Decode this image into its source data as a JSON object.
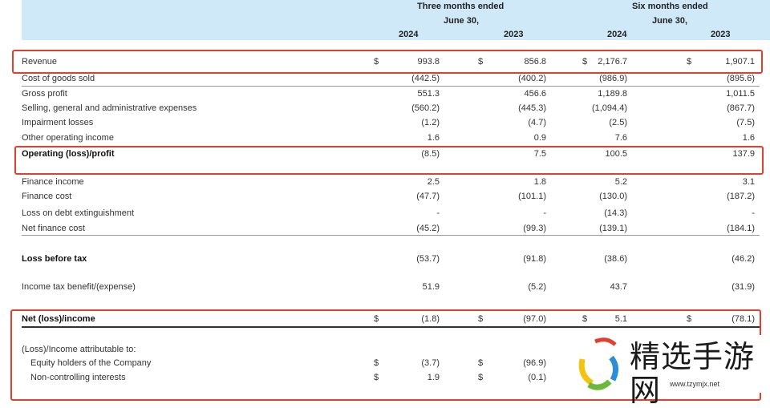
{
  "header": {
    "three_months": "Three months ended",
    "six_months": "Six months ended",
    "june30": "June 30,",
    "years": [
      "2024",
      "2023",
      "2024",
      "2023"
    ]
  },
  "rows": [
    {
      "label": "Revenue",
      "style": "normal",
      "dollar": true,
      "values": [
        "993.8",
        "856.8",
        "2,176.7",
        "1,907.1"
      ]
    },
    {
      "label": "Cost of goods sold",
      "style": "normal",
      "values": [
        "(442.5)",
        "(400.2)",
        "(986.9)",
        "(895.6)"
      ]
    },
    {
      "label": "Gross profit",
      "style": "normal",
      "values": [
        "551.3",
        "456.6",
        "1,189.8",
        "1,011.5"
      ]
    },
    {
      "label": "Selling, general and administrative expenses",
      "style": "normal",
      "values": [
        "(560.2)",
        "(445.3)",
        "(1,094.4)",
        "(867.7)"
      ]
    },
    {
      "label": "Impairment losses",
      "style": "normal",
      "values": [
        "(1.2)",
        "(4.7)",
        "(2.5)",
        "(7.5)"
      ]
    },
    {
      "label": "Other operating income",
      "style": "normal",
      "values": [
        "1.6",
        "0.9",
        "7.6",
        "1.6"
      ]
    },
    {
      "label": "Operating (loss)/profit",
      "style": "bold",
      "values": [
        "(8.5)",
        "7.5",
        "100.5",
        "137.9"
      ]
    },
    {
      "label": "Finance income",
      "style": "normal",
      "values": [
        "2.5",
        "1.8",
        "5.2",
        "3.1"
      ]
    },
    {
      "label": "Finance cost",
      "style": "normal",
      "values": [
        "(47.7)",
        "(101.1)",
        "(130.0)",
        "(187.2)"
      ]
    },
    {
      "label": "Loss on debt extinguishment",
      "style": "normal",
      "values": [
        "-",
        "-",
        "(14.3)",
        "-"
      ]
    },
    {
      "label": "Net finance cost",
      "style": "normal",
      "values": [
        "(45.2)",
        "(99.3)",
        "(139.1)",
        "(184.1)"
      ]
    },
    {
      "label": "Loss before tax",
      "style": "bold",
      "values": [
        "(53.7)",
        "(91.8)",
        "(38.6)",
        "(46.2)"
      ]
    },
    {
      "label": "Income tax benefit/(expense)",
      "style": "normal",
      "values": [
        "51.9",
        "(5.2)",
        "43.7",
        "(31.9)"
      ]
    },
    {
      "label": "Net (loss)/income",
      "style": "bold",
      "dollar": true,
      "values": [
        "(1.8)",
        "(97.0)",
        "5.1",
        "(78.1)"
      ]
    },
    {
      "label": "(Loss)/Income attributable to:",
      "style": "normal",
      "values": []
    },
    {
      "label": "Equity holders of the Company",
      "style": "indent",
      "dollar": true,
      "values": [
        "(3.7)",
        "(96.9)"
      ]
    },
    {
      "label": "Non-controlling interests",
      "style": "indent",
      "dollar": true,
      "values": [
        "1.9",
        "(0.1)"
      ]
    }
  ],
  "currency_symbol": "$",
  "highlight_color": "#e0412f",
  "header_color": "#cfe9f8",
  "watermark": {
    "text": "精选手游网",
    "url": "www.tzymjx.net"
  }
}
